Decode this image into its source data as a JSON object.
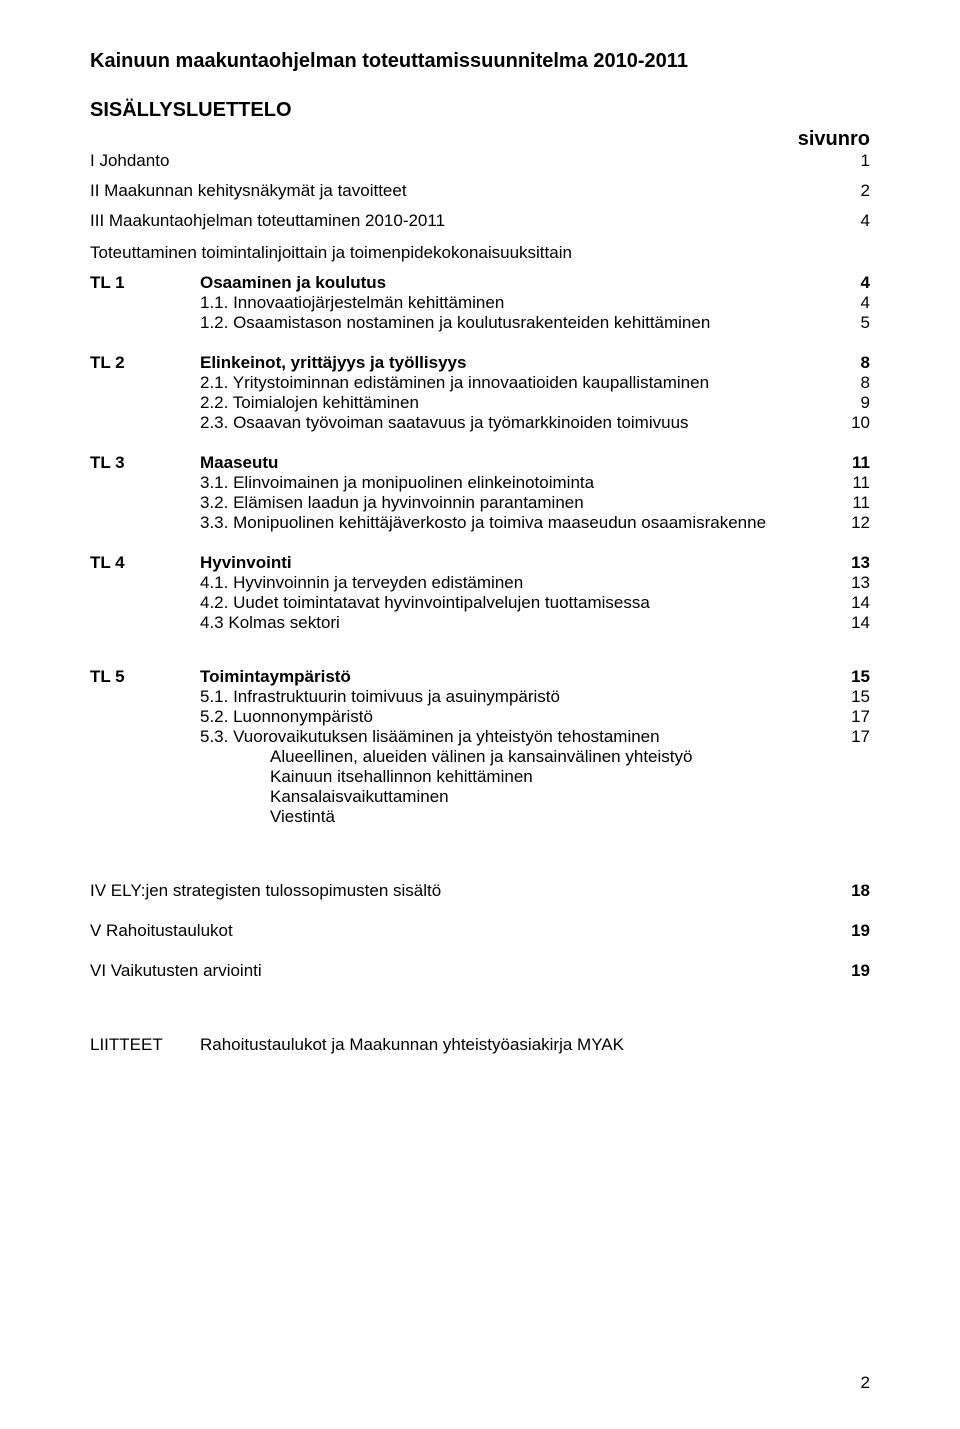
{
  "title": "Kainuun maakuntaohjelman toteuttamissuunnitelma 2010-2011",
  "toc_heading": "SISÄLLYSLUETTELO",
  "page_col_label": "sivunro",
  "sections_top": [
    {
      "label": "I Johdanto",
      "page": "1"
    },
    {
      "label": "II Maakunnan kehitysnäkymät ja tavoitteet",
      "page": "2"
    },
    {
      "label": "III Maakuntaohjelman toteuttaminen 2010-2011",
      "page": "4"
    }
  ],
  "toteuttaminen_line": "Toteuttaminen toimintalinjoittain ja toimenpidekokonaisuuksittain",
  "tl1": {
    "code": "TL 1",
    "title": "Osaaminen ja koulutus",
    "page": "4",
    "items": [
      {
        "label": "1.1. Innovaatiojärjestelmän kehittäminen",
        "page": "4"
      },
      {
        "label": "1.2. Osaamistason nostaminen ja koulutusrakenteiden kehittäminen",
        "page": "5"
      }
    ]
  },
  "tl2": {
    "code": "TL 2",
    "title": "Elinkeinot, yrittäjyys ja työllisyys",
    "page": "8",
    "items": [
      {
        "label": "2.1. Yritystoiminnan edistäminen ja innovaatioiden kaupallistaminen",
        "page": "8"
      },
      {
        "label": "2.2. Toimialojen kehittäminen",
        "page": "9"
      },
      {
        "label": "2.3. Osaavan työvoiman saatavuus ja työmarkkinoiden toimivuus",
        "page": "10"
      }
    ]
  },
  "tl3": {
    "code": "TL 3",
    "title": "Maaseutu",
    "page": "11",
    "items": [
      {
        "label": "3.1. Elinvoimainen ja monipuolinen elinkeinotoiminta",
        "page": "11"
      },
      {
        "label": "3.2. Elämisen laadun ja hyvinvoinnin parantaminen",
        "page": "11"
      },
      {
        "label": "3.3. Monipuolinen kehittäjäverkosto ja toimiva maaseudun osaamisrakenne",
        "page": "12"
      }
    ]
  },
  "tl4": {
    "code": "TL 4",
    "title": "Hyvinvointi",
    "page": "13",
    "items": [
      {
        "label": "4.1. Hyvinvoinnin ja terveyden edistäminen",
        "page": "13"
      },
      {
        "label": "4.2. Uudet toimintatavat hyvinvointipalvelujen tuottamisessa",
        "page": "14"
      },
      {
        "label": "4.3  Kolmas sektori",
        "page": "14"
      }
    ]
  },
  "tl5": {
    "code": "TL 5",
    "title": "Toimintaympäristö",
    "page": "15",
    "items": [
      {
        "label": "5.1. Infrastruktuurin toimivuus ja asuinympäristö",
        "page": "15"
      },
      {
        "label": "5.2. Luonnonympäristö",
        "page": "17"
      },
      {
        "label": "5.3. Vuorovaikutuksen lisääminen ja yhteistyön tehostaminen",
        "page": "17"
      }
    ],
    "subitems": [
      "Alueellinen, alueiden välinen ja kansainvälinen yhteistyö",
      "Kainuun itsehallinnon kehittäminen",
      "Kansalaisvaikuttaminen",
      "Viestintä"
    ]
  },
  "bottom": [
    {
      "label": "IV ELY:jen strategisten tulossopimusten sisältö",
      "page": "18",
      "bold": true
    },
    {
      "label": "V Rahoitustaulukot",
      "page": "19",
      "bold": true
    },
    {
      "label": "VI Vaikutusten arviointi",
      "page": "19",
      "bold": true
    }
  ],
  "liitteet": {
    "key": "LIITTEET",
    "value": "Rahoitustaulukot ja Maakunnan yhteistyöasiakirja MYAK"
  },
  "page_number": "2"
}
